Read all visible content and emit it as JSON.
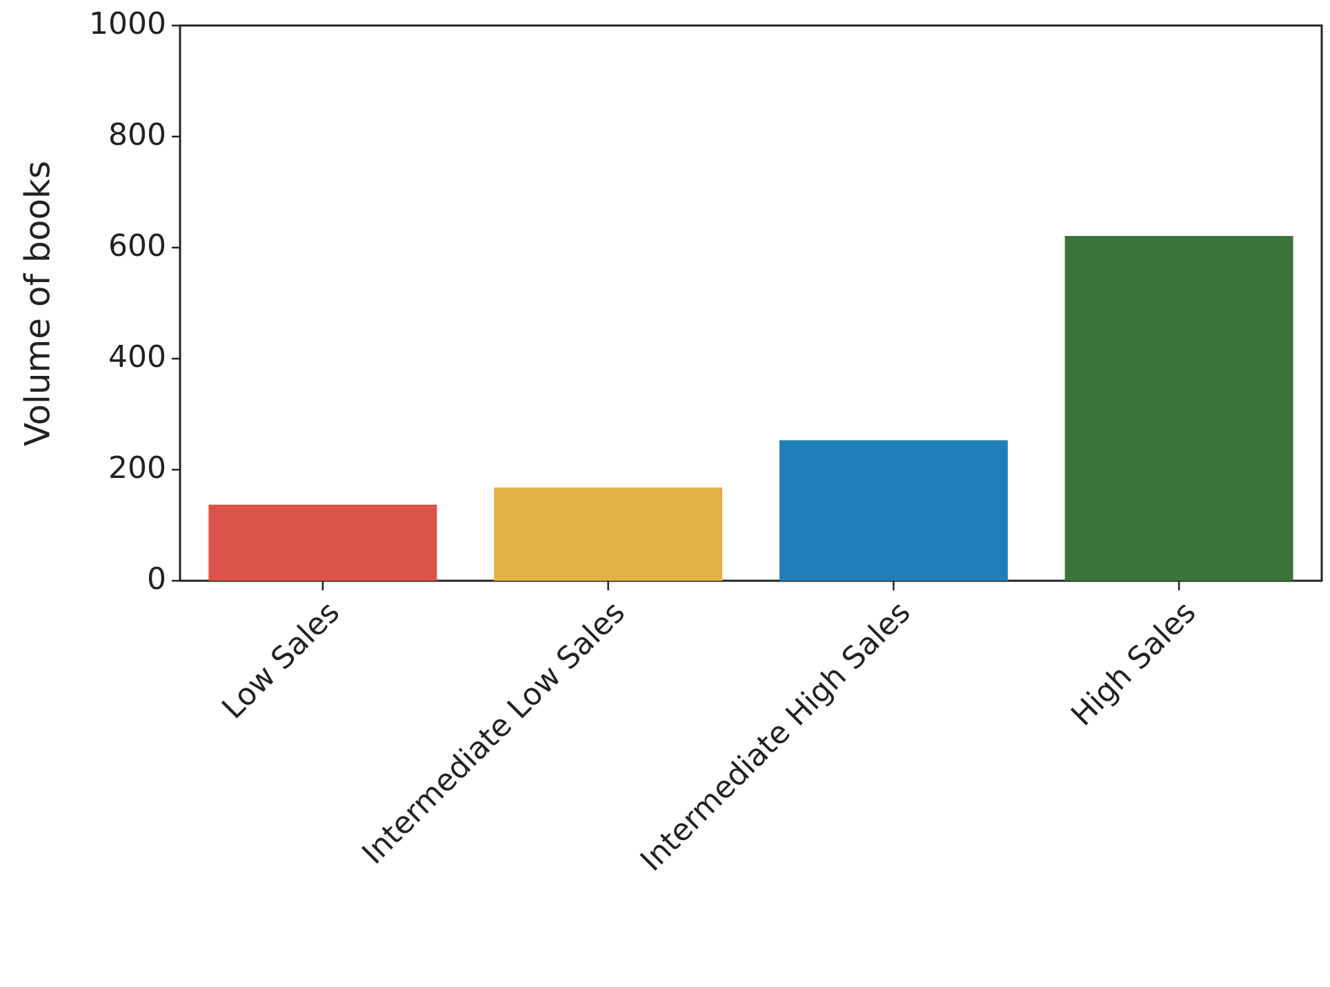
{
  "chart_data": {
    "type": "bar",
    "y_label": "Volume of books",
    "categories": [
      "Low Sales",
      "Intermediate Low Sales",
      "Intermediate High Sales",
      "High Sales"
    ],
    "values": [
      137,
      168,
      253,
      621
    ],
    "colors": [
      "#dc5449",
      "#e1b145",
      "#1f7fb8",
      "#3a743a"
    ],
    "ylim": [
      0,
      1000
    ],
    "yticks": [
      0,
      200,
      400,
      600,
      800,
      1000
    ],
    "grid": false
  }
}
